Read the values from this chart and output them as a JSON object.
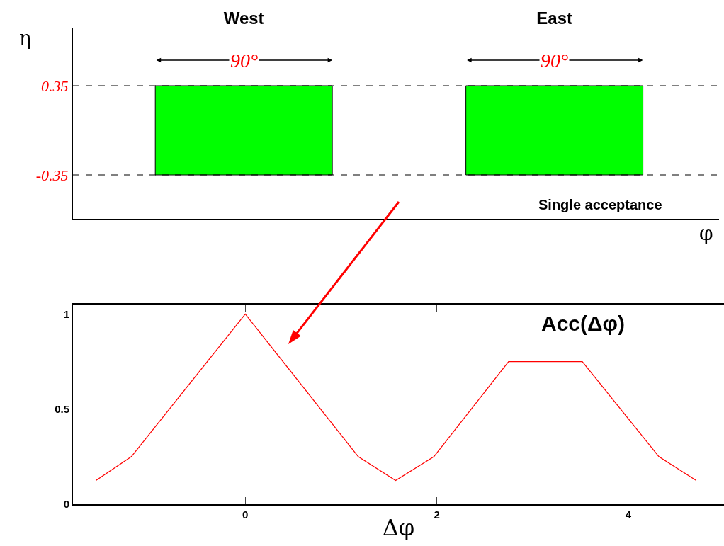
{
  "chart_data": [
    {
      "type": "bar",
      "categories": [
        "West",
        "East"
      ],
      "base": [
        -0.35,
        -0.35
      ],
      "values": [
        0.7,
        0.7
      ],
      "color": "#00ff00",
      "xlabel": "φ",
      "ylabel": "η",
      "ylim": [
        -0.7,
        0.8
      ],
      "yticks": [
        -0.35,
        0.35
      ],
      "grid": false,
      "ref_lines": [
        {
          "axis": "y",
          "value": 0.35,
          "line_style": "dashed"
        },
        {
          "axis": "y",
          "value": -0.35,
          "line_style": "dashed"
        }
      ],
      "annotations": [
        {
          "text": "90°",
          "x": "West",
          "y": 0.55
        },
        {
          "text": "90°",
          "x": "East",
          "y": 0.55
        },
        "Single acceptance"
      ]
    },
    {
      "type": "line",
      "x": [
        -1.56,
        -1.19,
        0,
        1.18,
        1.57,
        1.97,
        2.75,
        3.52,
        4.32,
        4.71
      ],
      "values": [
        0.125,
        0.25,
        1,
        0.25,
        0.125,
        0.25,
        0.75,
        0.75,
        0.25,
        0.125
      ],
      "color": "#ff0000",
      "xlabel": "Δφ",
      "xlim": [
        -1.8,
        5.0
      ],
      "xticks": [
        0,
        2,
        4
      ],
      "ylim": [
        0,
        1.05
      ],
      "yticks": [
        0,
        0.5,
        1
      ],
      "grid": false,
      "marker": "none",
      "line_style": "solid",
      "annotations": [
        "Acc(Δφ)"
      ]
    }
  ]
}
